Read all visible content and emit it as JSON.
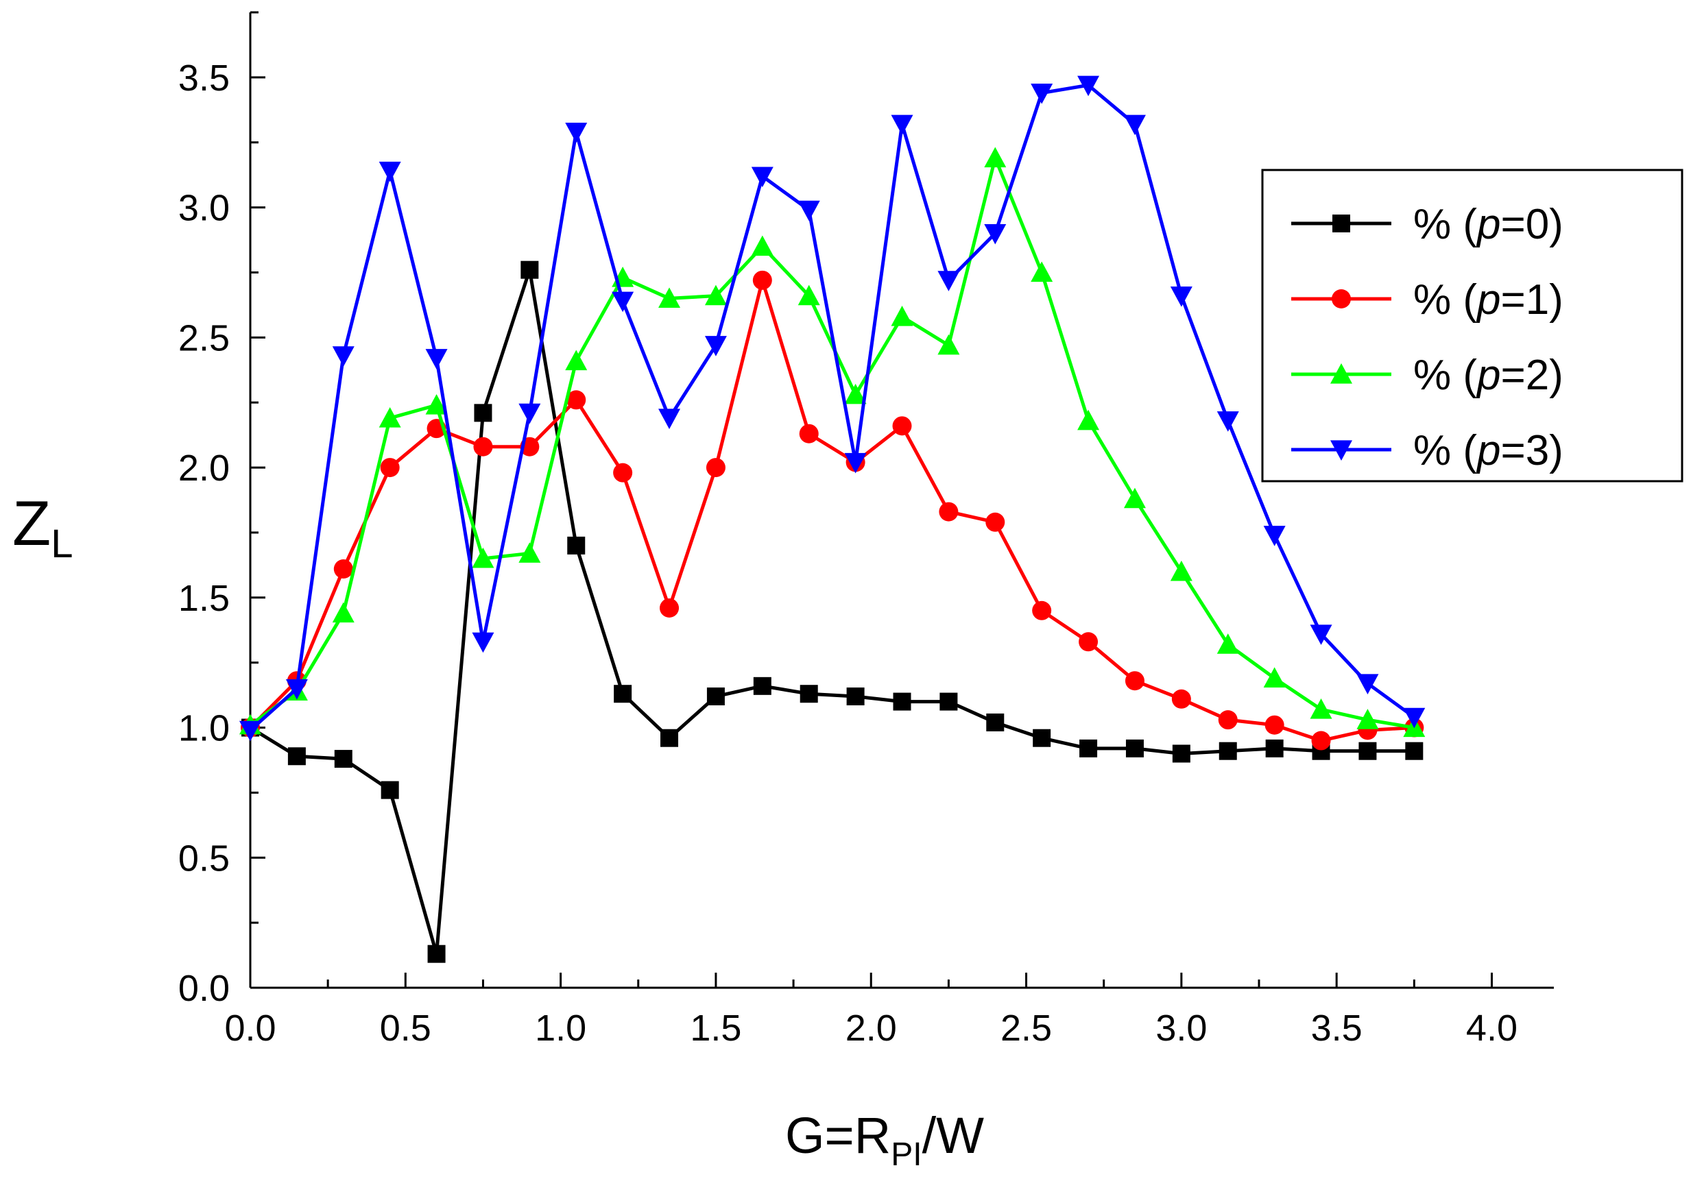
{
  "chart_data": {
    "type": "line",
    "xlabel": {
      "main": "G=R",
      "sub": "PI",
      "suffix": "/W"
    },
    "ylabel": {
      "main": "Z",
      "sub": "L"
    },
    "xlim": [
      0,
      4.2
    ],
    "ylim": [
      0,
      3.75
    ],
    "xticks": [
      0.0,
      0.5,
      1.0,
      1.5,
      2.0,
      2.5,
      3.0,
      3.5,
      4.0
    ],
    "xtick_labels": [
      "0.0",
      "0.5",
      "1.0",
      "1.5",
      "2.0",
      "2.5",
      "3.0",
      "3.5",
      "4.0"
    ],
    "yticks": [
      0.0,
      0.5,
      1.0,
      1.5,
      2.0,
      2.5,
      3.0,
      3.5
    ],
    "ytick_labels": [
      "0.0",
      "0.5",
      "1.0",
      "1.5",
      "2.0",
      "2.5",
      "3.0",
      "3.5"
    ],
    "legend_position": "top-right",
    "x": [
      0.0,
      0.15,
      0.3,
      0.45,
      0.6,
      0.75,
      0.9,
      1.05,
      1.2,
      1.35,
      1.5,
      1.65,
      1.8,
      1.95,
      2.1,
      2.25,
      2.4,
      2.55,
      2.7,
      2.85,
      3.0,
      3.15,
      3.3,
      3.45,
      3.6,
      3.75
    ],
    "series": [
      {
        "name": "% (p=0)",
        "prefix": "% (",
        "var": "p",
        "suffix": "=0)",
        "color": "#000000",
        "marker": "square",
        "values": [
          1.0,
          0.89,
          0.88,
          0.76,
          0.13,
          2.21,
          2.76,
          1.7,
          1.13,
          0.96,
          1.12,
          1.16,
          1.13,
          1.12,
          1.1,
          1.1,
          1.02,
          0.96,
          0.92,
          0.92,
          0.9,
          0.91,
          0.92,
          0.91,
          0.91,
          0.91
        ]
      },
      {
        "name": "% (p=1)",
        "prefix": "% (",
        "var": "p",
        "suffix": "=1)",
        "color": "#ff0000",
        "marker": "circle",
        "values": [
          1.0,
          1.18,
          1.61,
          2.0,
          2.15,
          2.08,
          2.08,
          2.26,
          1.98,
          1.46,
          2.0,
          2.72,
          2.13,
          2.02,
          2.16,
          1.83,
          1.79,
          1.45,
          1.33,
          1.18,
          1.11,
          1.03,
          1.01,
          0.95,
          0.99,
          1.0
        ]
      },
      {
        "name": "% (p=2)",
        "prefix": "% (",
        "var": "p",
        "suffix": "=2)",
        "color": "#00ff00",
        "marker": "triangle-up",
        "values": [
          1.01,
          1.14,
          1.44,
          2.19,
          2.24,
          1.65,
          1.67,
          2.41,
          2.73,
          2.65,
          2.66,
          2.85,
          2.66,
          2.28,
          2.58,
          2.47,
          3.19,
          2.75,
          2.18,
          1.88,
          1.6,
          1.32,
          1.19,
          1.07,
          1.03,
          1.0
        ]
      },
      {
        "name": "% (p=3)",
        "prefix": "% (",
        "var": "p",
        "suffix": "=3)",
        "color": "#0000ff",
        "marker": "triangle-down",
        "values": [
          0.99,
          1.15,
          2.43,
          3.14,
          2.42,
          1.33,
          2.21,
          3.29,
          2.64,
          2.19,
          2.47,
          3.12,
          2.99,
          2.02,
          3.32,
          2.72,
          2.9,
          3.44,
          3.47,
          3.32,
          2.66,
          2.18,
          1.74,
          1.36,
          1.17,
          1.04
        ]
      }
    ]
  }
}
